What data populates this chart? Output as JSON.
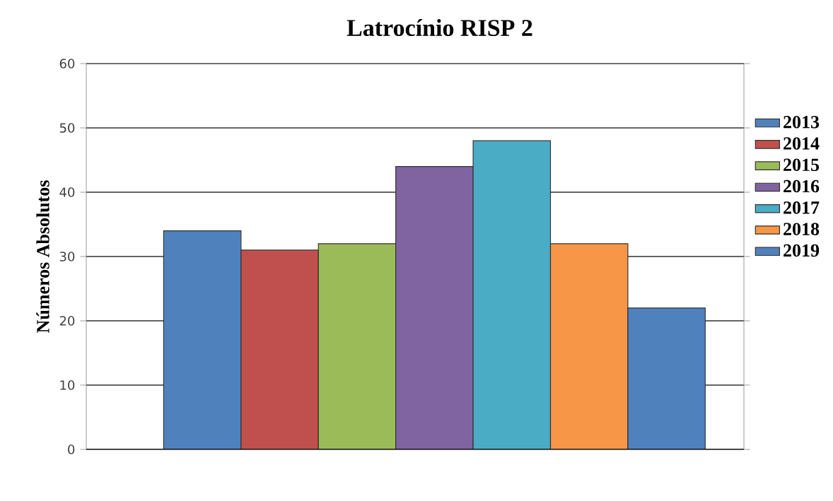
{
  "chart_data": {
    "type": "bar",
    "title": "Latrocínio RISP 2",
    "ylabel": "Números Absolutos",
    "categories": [
      null
    ],
    "series": [
      {
        "name": "2013",
        "color": "#4f81bd",
        "values": [
          34
        ]
      },
      {
        "name": "2014",
        "color": "#c0504d",
        "values": [
          31
        ]
      },
      {
        "name": "2015",
        "color": "#9bbb59",
        "values": [
          32
        ]
      },
      {
        "name": "2016",
        "color": "#8064a2",
        "values": [
          44
        ]
      },
      {
        "name": "2017",
        "color": "#4bacc6",
        "values": [
          48
        ]
      },
      {
        "name": "2018",
        "color": "#f79646",
        "values": [
          32
        ]
      },
      {
        "name": "2019",
        "color": "#4f81bd",
        "values": [
          22
        ]
      }
    ],
    "ylim": [
      0,
      60
    ],
    "yticks": [
      0,
      10,
      20,
      30,
      40,
      50,
      60
    ],
    "grid": "y",
    "legend": "right"
  }
}
